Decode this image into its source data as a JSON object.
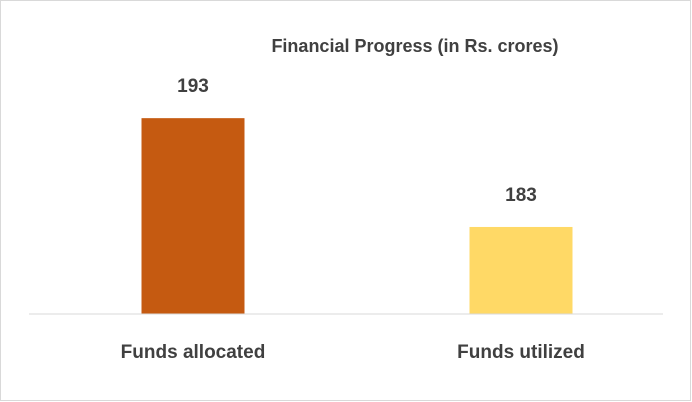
{
  "chart_data": {
    "type": "bar",
    "title": "Financial Progress (in Rs. crores)",
    "categories": [
      "Funds allocated",
      "Funds utilized"
    ],
    "values": [
      193,
      183
    ],
    "colors": [
      "#c55a11",
      "#ffd966"
    ],
    "ylim": [
      175,
      200
    ]
  }
}
